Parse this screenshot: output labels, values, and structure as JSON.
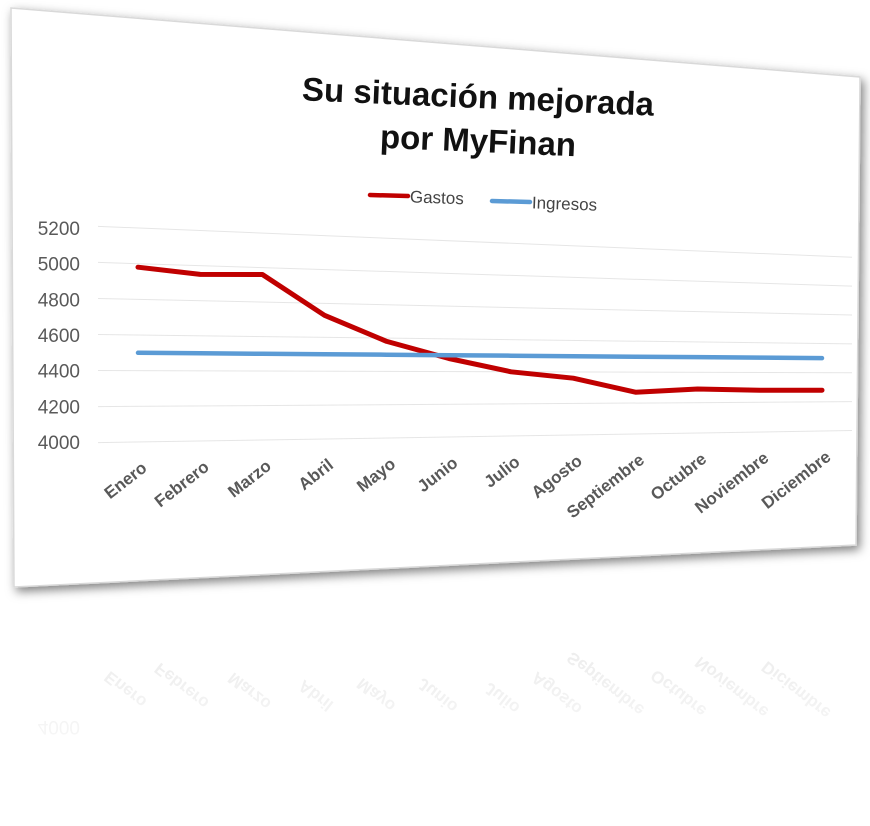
{
  "chart_data": {
    "type": "line",
    "title_lines": [
      "Su situación mejorada",
      "por MyFinan"
    ],
    "categories": [
      "Enero",
      "Febrero",
      "Marzo",
      "Abril",
      "Mayo",
      "Junio",
      "Julio",
      "Agosto",
      "Septiembre",
      "Octubre",
      "Noviembre",
      "Diciembre"
    ],
    "series": [
      {
        "name": "Gastos",
        "color": "#c00000",
        "values": [
          4980,
          4950,
          4960,
          4730,
          4580,
          4480,
          4400,
          4360,
          4270,
          4290,
          4280,
          4280
        ]
      },
      {
        "name": "Ingresos",
        "color": "#5b9bd5",
        "values": [
          4500,
          4500,
          4500,
          4500,
          4500,
          4500,
          4500,
          4500,
          4500,
          4500,
          4500,
          4500
        ]
      }
    ],
    "ylim": [
      4000,
      5200
    ],
    "yticks": [
      4000,
      4200,
      4400,
      4600,
      4800,
      5000,
      5200
    ],
    "xlabel": "",
    "ylabel": "",
    "grid": true,
    "legend_position": "top"
  }
}
